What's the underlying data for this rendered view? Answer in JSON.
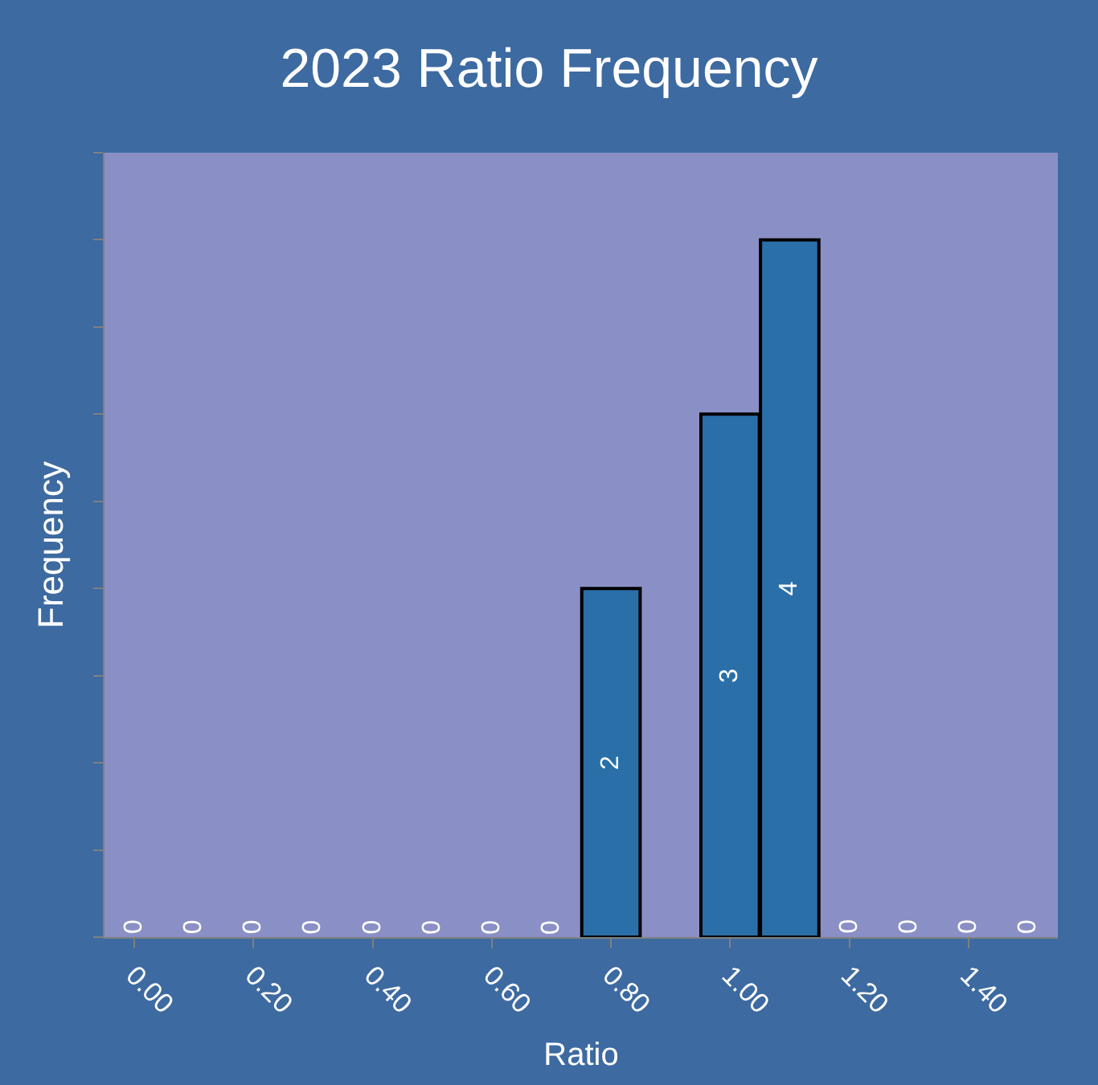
{
  "chart_data": {
    "type": "bar",
    "title": "2023 Ratio Frequency",
    "xlabel": "Ratio",
    "ylabel": "Frequency",
    "categories": [
      "0.00",
      null,
      "0.20",
      null,
      "0.40",
      null,
      "0.60",
      null,
      "0.80",
      null,
      "1.00",
      null,
      "1.20",
      null,
      "1.40",
      null
    ],
    "values": [
      0,
      0,
      0,
      0,
      0,
      0,
      0,
      0,
      2,
      0,
      3,
      4,
      0,
      0,
      0,
      0
    ],
    "value_labels": [
      "0",
      "0",
      "0",
      "0",
      "0",
      "0",
      "0",
      "0",
      "2",
      null,
      "3",
      "4",
      "0",
      "0",
      "0",
      "0"
    ],
    "color": "#2a6fa8",
    "ylim": [
      0,
      4.5
    ],
    "yticks": [
      {
        "value": 0,
        "label": null
      },
      {
        "value": 0.5,
        "label": null
      },
      {
        "value": 1,
        "label": null
      },
      {
        "value": 1.5,
        "label": null
      },
      {
        "value": 2,
        "label": null
      },
      {
        "value": 2.5,
        "label": null
      },
      {
        "value": 3,
        "label": null
      },
      {
        "value": 3.5,
        "label": null
      },
      {
        "value": 4,
        "label": null
      },
      {
        "value": 4.5,
        "label": null
      }
    ],
    "tick_labels": "x",
    "grid": false
  }
}
